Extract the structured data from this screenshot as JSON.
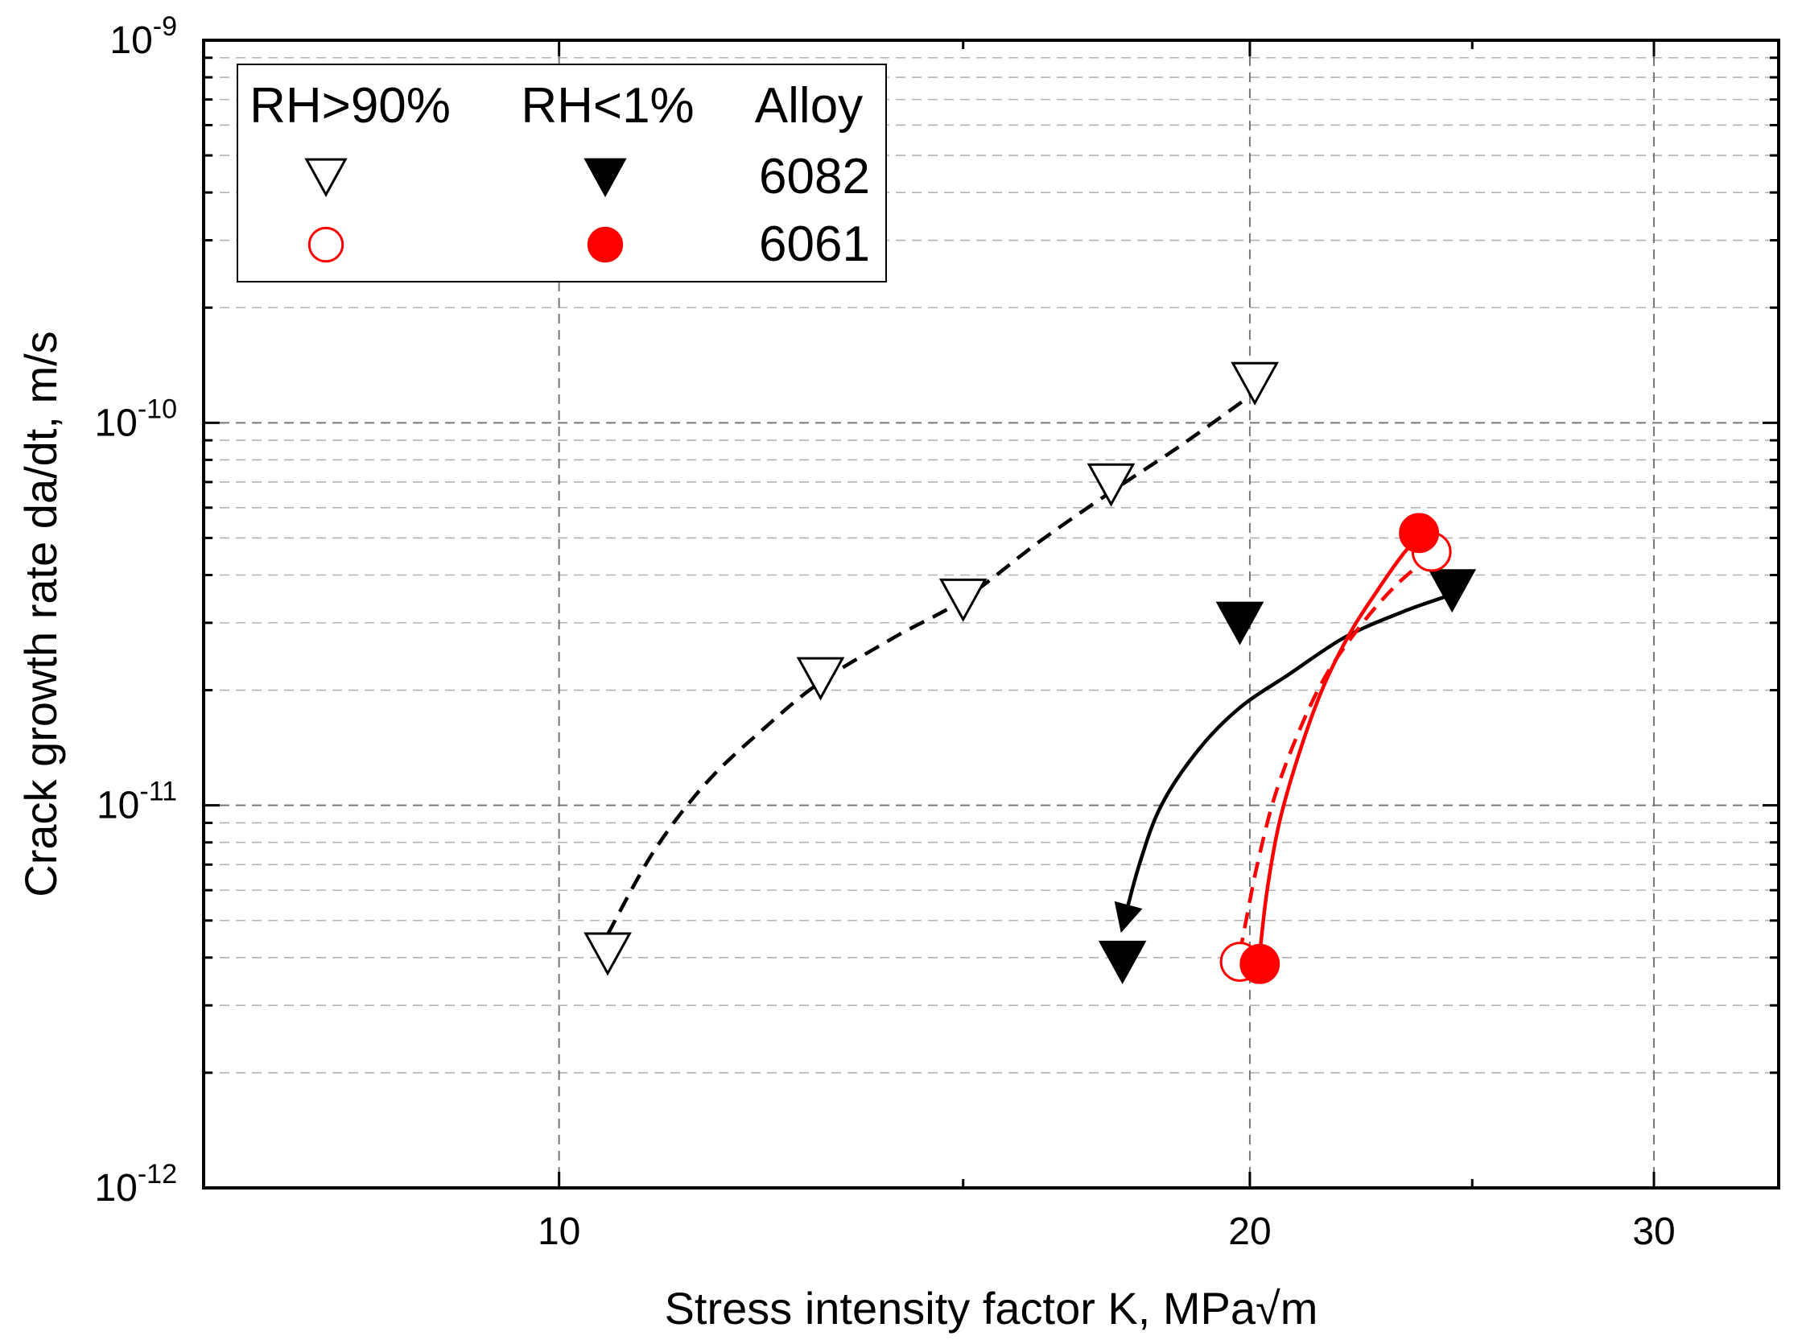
{
  "chart_data": {
    "type": "scatter",
    "title": "",
    "xlabel": "Stress intensity factor K, MPa√m",
    "ylabel": "Crack growth rate da/dt, m/s",
    "x_scale": "log",
    "y_scale": "log",
    "xlim": [
      7,
      34
    ],
    "ylim": [
      1e-12,
      1e-09
    ],
    "x_ticks": [
      {
        "value": 10,
        "label": "10"
      },
      {
        "value": 20,
        "label": "20"
      },
      {
        "value": 30,
        "label": "30"
      }
    ],
    "y_ticks": [
      {
        "value": 1e-12,
        "base": "10",
        "exp": "-12"
      },
      {
        "value": 1e-11,
        "base": "10",
        "exp": "-11"
      },
      {
        "value": 1e-10,
        "base": "10",
        "exp": "-10"
      },
      {
        "value": 1e-09,
        "base": "10",
        "exp": "-9"
      }
    ],
    "grid": true,
    "legend": {
      "position": "top-left",
      "headers": [
        "RH>90%",
        "RH<1%",
        "Alloy"
      ],
      "rows": [
        {
          "alloy": "6082",
          "humid_series": "6082 RH>90%",
          "dry_series": "6082 RH<1%"
        },
        {
          "alloy": "6061",
          "humid_series": "6061 RH>90%",
          "dry_series": "6061 RH<1%"
        }
      ]
    },
    "series": [
      {
        "name": "6082 RH>90%",
        "marker": "open-triangle-down",
        "color": "#000000",
        "points": [
          [
            10.5,
            4.1e-12
          ],
          [
            13.0,
            2.15e-11
          ],
          [
            15.0,
            3.45e-11
          ],
          [
            17.4,
            6.9e-11
          ],
          [
            20.1,
            1.27e-10
          ]
        ],
        "trend": {
          "style": "dashed",
          "color": "#000000",
          "points": [
            [
              10.5,
              4.6e-12
            ],
            [
              11.0,
              7.6e-12
            ],
            [
              11.6,
              1.15e-11
            ],
            [
              12.3,
              1.6e-11
            ],
            [
              13.0,
              2.1e-11
            ],
            [
              14.0,
              2.75e-11
            ],
            [
              15.0,
              3.45e-11
            ],
            [
              16.2,
              4.9e-11
            ],
            [
              17.4,
              6.6e-11
            ],
            [
              18.7,
              8.8e-11
            ],
            [
              20.1,
              1.2e-10
            ]
          ]
        }
      },
      {
        "name": "6082 RH<1%",
        "marker": "filled-triangle-down",
        "color": "#000000",
        "points": [
          [
            17.6,
            3.9e-12
          ],
          [
            19.8,
            3e-11
          ],
          [
            24.5,
            3.65e-11
          ]
        ],
        "trend": {
          "style": "solid",
          "color": "#000000",
          "points": [
            [
              24.3,
              3.5e-11
            ],
            [
              23.3,
              3.2e-11
            ],
            [
              22.0,
              2.75e-11
            ],
            [
              20.8,
              2.2e-11
            ],
            [
              19.8,
              1.8e-11
            ],
            [
              19.0,
              1.4e-11
            ],
            [
              18.3,
              1e-11
            ],
            [
              17.9,
              7e-12
            ],
            [
              17.6,
              4.8e-12
            ]
          ]
        }
      },
      {
        "name": "6061 RH>90%",
        "marker": "open-circle",
        "color": "#ff0000",
        "points": [
          [
            19.8,
            3.9e-12
          ],
          [
            24.0,
            4.6e-11
          ]
        ],
        "trend": {
          "style": "dashed",
          "color": "#ff0000",
          "points": [
            [
              19.8,
              4.1e-12
            ],
            [
              19.95,
              5.2e-12
            ],
            [
              20.15,
              7e-12
            ],
            [
              20.5,
              1.05e-11
            ],
            [
              21.0,
              1.55e-11
            ],
            [
              21.6,
              2.2e-11
            ],
            [
              22.4,
              3e-11
            ],
            [
              23.2,
              3.8e-11
            ],
            [
              24.0,
              4.5e-11
            ]
          ]
        }
      },
      {
        "name": "6061 RH<1%",
        "marker": "filled-circle",
        "color": "#ff0000",
        "points": [
          [
            20.2,
            3.85e-12
          ],
          [
            23.7,
            5.15e-11
          ]
        ],
        "trend": {
          "style": "solid",
          "color": "#ff0000",
          "points": [
            [
              20.2,
              4.1e-12
            ],
            [
              20.35,
              6e-12
            ],
            [
              20.6,
              9e-12
            ],
            [
              21.0,
              1.35e-11
            ],
            [
              21.5,
              2e-11
            ],
            [
              22.1,
              2.8e-11
            ],
            [
              22.7,
              3.6e-11
            ],
            [
              23.3,
              4.5e-11
            ],
            [
              23.7,
              5.05e-11
            ]
          ]
        }
      }
    ]
  }
}
